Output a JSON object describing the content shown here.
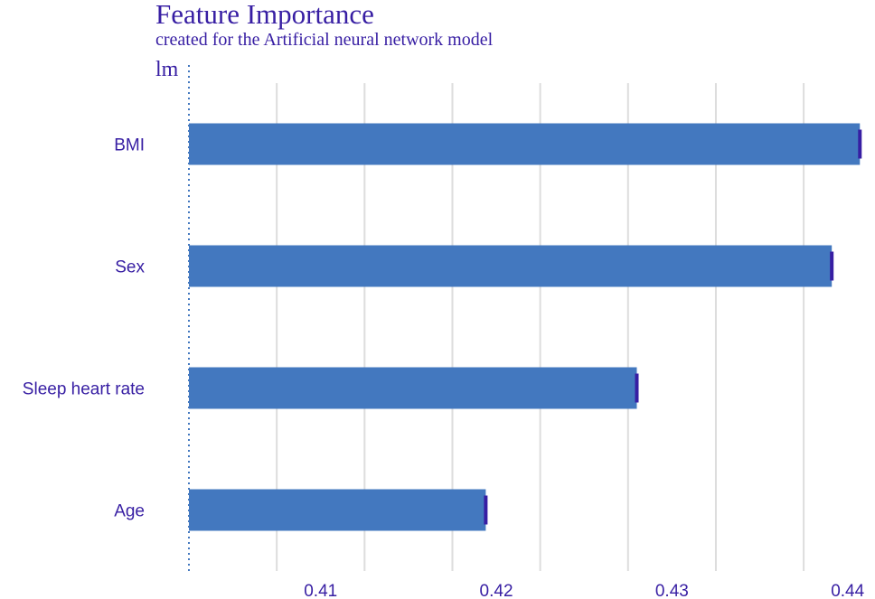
{
  "chart_data": {
    "type": "bar",
    "orientation": "horizontal",
    "title": "Feature Importance",
    "subtitle": "created for the Artificial neural network model",
    "facet_label": "lm",
    "baseline": 0.4025,
    "categories": [
      "BMI",
      "Sex",
      "Sleep heart rate",
      "Age"
    ],
    "values": [
      0.4407,
      0.4391,
      0.428,
      0.4194
    ],
    "xlim": [
      0.4025,
      0.4412
    ],
    "xticks": [
      0.41,
      0.42,
      0.43,
      0.44
    ],
    "xtick_labels": [
      "0.41",
      "0.42",
      "0.43",
      "0.44"
    ],
    "grid": "vertical",
    "colors": {
      "bar": "#4378bf",
      "bar_end": "#371ea3",
      "text": "#371ea3",
      "grid": "#dddddd",
      "baseline": "#4378bf"
    }
  }
}
